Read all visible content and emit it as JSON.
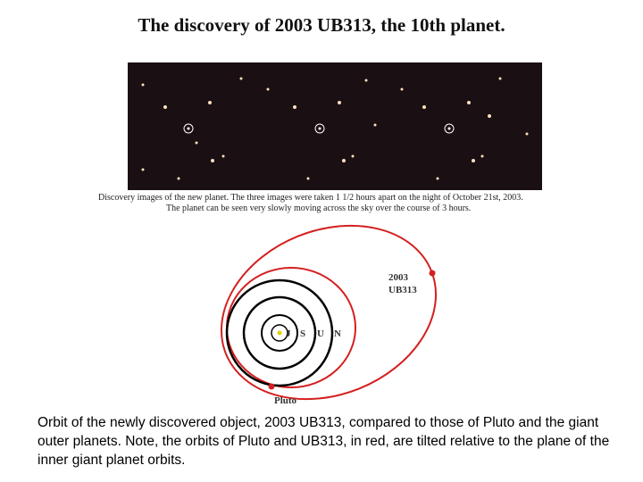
{
  "title": "The discovery of 2003 UB313, the 10th planet.",
  "discovery_image": {
    "caption_lines": [
      "Discovery images of the new planet. The three images were taken 1 1/2 hours apart on the night of October 21st, 2003.",
      "The planet can be seen very slowly moving across the sky over the course of 3 hours."
    ]
  },
  "orbit_diagram": {
    "object_label_lines": [
      "2003",
      "UB313"
    ],
    "pluto_label": "Pluto",
    "planet_labels": [
      "J",
      "S",
      "U",
      "N"
    ]
  },
  "caption": "Orbit of the newly discovered object, 2003 UB313, compared to those of Pluto and the giant outer planets. Note, the orbits of Pluto and UB313, in red, are tilted relative to the plane of the inner giant planet orbits."
}
